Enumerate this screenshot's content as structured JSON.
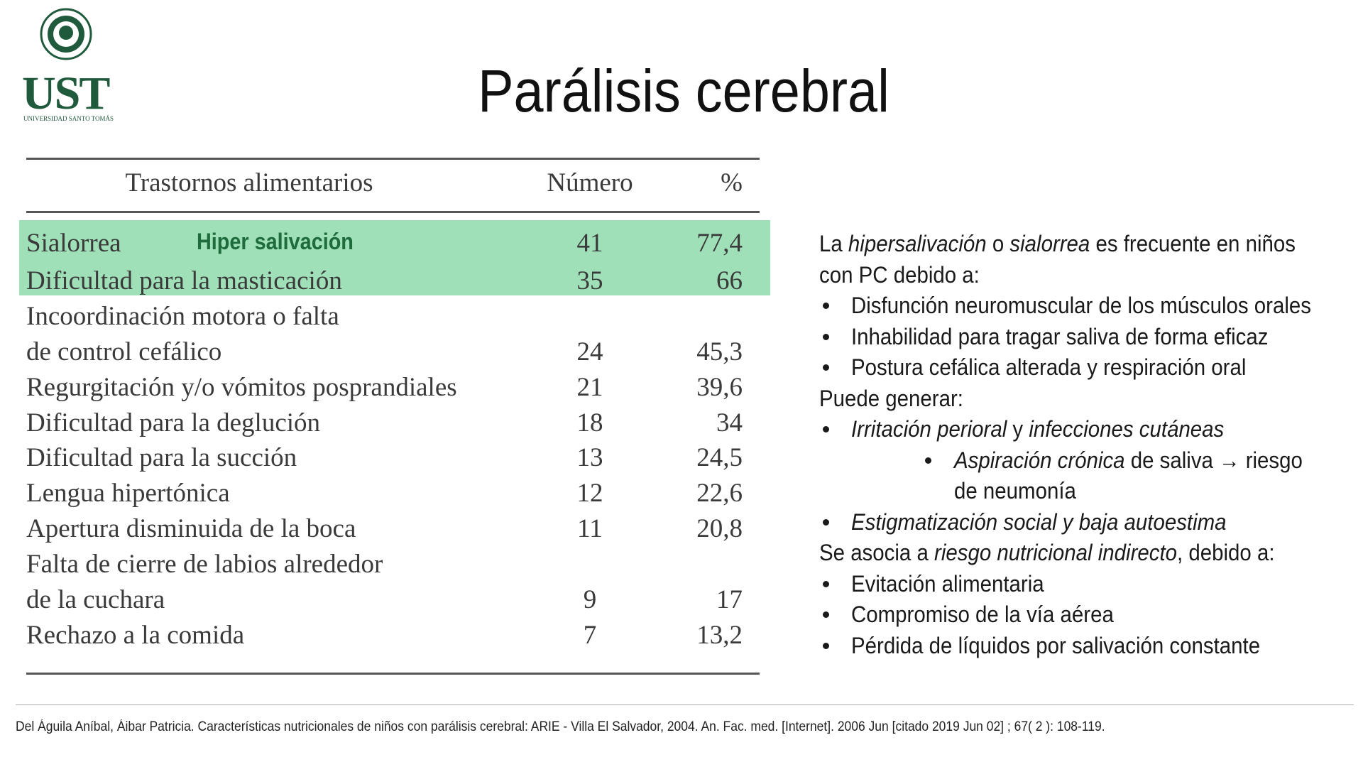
{
  "logo": {
    "name": "UST",
    "subtitle": "UNIVERSIDAD SANTO TOMÁS"
  },
  "title": "Parálisis cerebral",
  "table": {
    "header": [
      "Trastornos alimentarios",
      "Número",
      "%"
    ],
    "highlight_note": "Hiper salivación",
    "highlighted_rows": 2,
    "rows": [
      {
        "label": [
          "Sialorrea"
        ],
        "number": "41",
        "percent": "77,4"
      },
      {
        "label": [
          "Dificultad para la masticación"
        ],
        "number": "35",
        "percent": "66"
      },
      {
        "label": [
          "Incoordinación motora o falta",
          "de control cefálico"
        ],
        "number": "24",
        "percent": "45,3"
      },
      {
        "label": [
          "Regurgitación y/o vómitos posprandiales"
        ],
        "number": "21",
        "percent": "39,6"
      },
      {
        "label": [
          "Dificultad para la deglución"
        ],
        "number": "18",
        "percent": "34"
      },
      {
        "label": [
          "Dificultad para la succión"
        ],
        "number": "13",
        "percent": "24,5"
      },
      {
        "label": [
          "Lengua hipertónica"
        ],
        "number": "12",
        "percent": "22,6"
      },
      {
        "label": [
          "Apertura disminuida de la boca"
        ],
        "number": "11",
        "percent": "20,8"
      },
      {
        "label": [
          "Falta de cierre de labios alrededor",
          "de la cuchara"
        ],
        "number": "9",
        "percent": "17"
      },
      {
        "label": [
          "Rechazo a la comida"
        ],
        "number": "7",
        "percent": "13,2"
      }
    ]
  },
  "notes": [
    {
      "level": 0,
      "segments": [
        {
          "t": "La "
        },
        {
          "t": "hipersalivación",
          "i": true
        },
        {
          "t": " o "
        },
        {
          "t": "sialorrea",
          "i": true
        },
        {
          "t": " es frecuente en niños"
        }
      ]
    },
    {
      "level": 0,
      "segments": [
        {
          "t": "con PC debido a:"
        }
      ]
    },
    {
      "level": 1,
      "segments": [
        {
          "t": "Disfunción neuromuscular de los músculos orales"
        }
      ]
    },
    {
      "level": 1,
      "segments": [
        {
          "t": "Inhabilidad para tragar saliva de forma eficaz"
        }
      ]
    },
    {
      "level": 1,
      "segments": [
        {
          "t": "Postura cefálica alterada y respiración oral"
        }
      ]
    },
    {
      "level": 0,
      "segments": [
        {
          "t": "Puede generar:"
        }
      ]
    },
    {
      "level": 1,
      "segments": [
        {
          "t": "Irritación perioral",
          "i": true
        },
        {
          "t": " y "
        },
        {
          "t": "infecciones cutáneas",
          "i": true
        }
      ]
    },
    {
      "level": 2,
      "segments": [
        {
          "t": "Aspiración crónica",
          "i": true
        },
        {
          "t": " de saliva → riesgo"
        }
      ]
    },
    {
      "level": 3,
      "segments": [
        {
          "t": "de neumonía"
        }
      ]
    },
    {
      "level": 1,
      "segments": [
        {
          "t": "Estigmatización social y baja autoestima",
          "i": true
        }
      ]
    },
    {
      "level": 0,
      "segments": [
        {
          "t": "Se asocia a "
        },
        {
          "t": "riesgo nutricional indirecto",
          "i": true
        },
        {
          "t": ", debido a:"
        }
      ]
    },
    {
      "level": 1,
      "segments": [
        {
          "t": "Evitación alimentaria"
        }
      ]
    },
    {
      "level": 1,
      "segments": [
        {
          "t": "Compromiso de la vía aérea"
        }
      ]
    },
    {
      "level": 1,
      "segments": [
        {
          "t": "Pérdida de líquidos por salivación constante"
        }
      ]
    }
  ],
  "citation": "Del Águila Aníbal, Áibar Patricia. Características nutricionales de niños con parálisis cerebral: ARIE - Villa El Salvador, 2004. An. Fac. med.  [Internet]. 2006  Jun [citado  2019  Jun  02] ;  67( 2 ): 108-119."
}
